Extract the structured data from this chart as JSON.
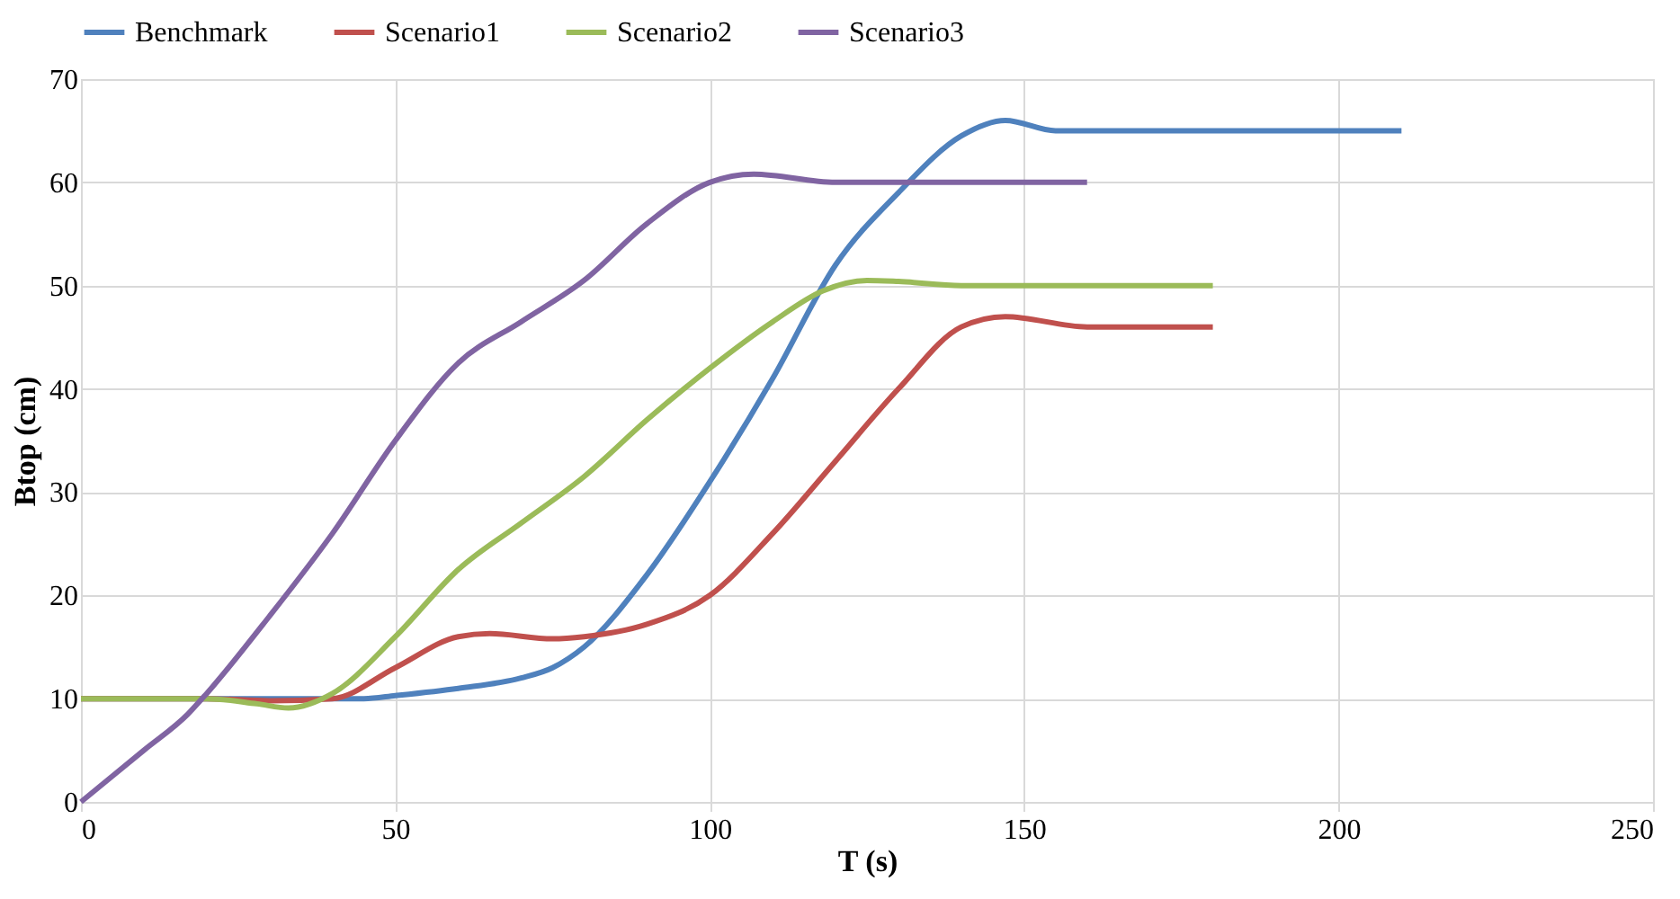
{
  "chart_data": {
    "type": "line",
    "xlabel": "T (s)",
    "ylabel": "Btop (cm)",
    "xlim": [
      0,
      250
    ],
    "ylim": [
      0,
      70
    ],
    "xticks": [
      0,
      50,
      100,
      150,
      200,
      250
    ],
    "yticks": [
      0,
      10,
      20,
      30,
      40,
      50,
      60,
      70
    ],
    "grid": true,
    "legend": "top",
    "marker": "none",
    "line_style": "solid",
    "series": [
      {
        "name": "Benchmark",
        "color": "#4f81bd",
        "x": [
          0,
          20,
          45,
          50,
          60,
          70,
          75,
          80,
          90,
          100,
          110,
          120,
          130,
          140,
          147,
          155,
          160,
          210
        ],
        "values": [
          10,
          10,
          10,
          10.3,
          11,
          12,
          13,
          15,
          22,
          31,
          41,
          52,
          59,
          64.5,
          66,
          65,
          65,
          65
        ]
      },
      {
        "name": "Scenario1",
        "color": "#c0504d",
        "x": [
          0,
          20,
          30,
          40,
          50,
          60,
          65,
          75,
          80,
          90,
          100,
          110,
          120,
          130,
          140,
          147,
          160,
          180
        ],
        "values": [
          10,
          10,
          9.8,
          10,
          13,
          16,
          16.3,
          15.8,
          16,
          17.2,
          20,
          26,
          33,
          40,
          46,
          47,
          46,
          46
        ]
      },
      {
        "name": "Scenario2",
        "color": "#9bbb59",
        "x": [
          0,
          20,
          28,
          33,
          40,
          50,
          60,
          70,
          80,
          90,
          100,
          110,
          118,
          125,
          130,
          140,
          180
        ],
        "values": [
          10,
          10,
          9.5,
          9.1,
          10.5,
          16,
          22.5,
          27,
          31.5,
          37,
          42,
          46.5,
          49.5,
          50.5,
          50.4,
          50,
          50
        ]
      },
      {
        "name": "Scenario3",
        "color": "#8064a2",
        "x": [
          0,
          10,
          17,
          20,
          30,
          40,
          50,
          60,
          70,
          80,
          90,
          100,
          107,
          120,
          160
        ],
        "values": [
          0,
          5,
          8.5,
          10.5,
          18,
          26,
          35,
          42.5,
          46.5,
          50.5,
          56,
          60,
          60.8,
          60,
          60
        ]
      }
    ]
  }
}
